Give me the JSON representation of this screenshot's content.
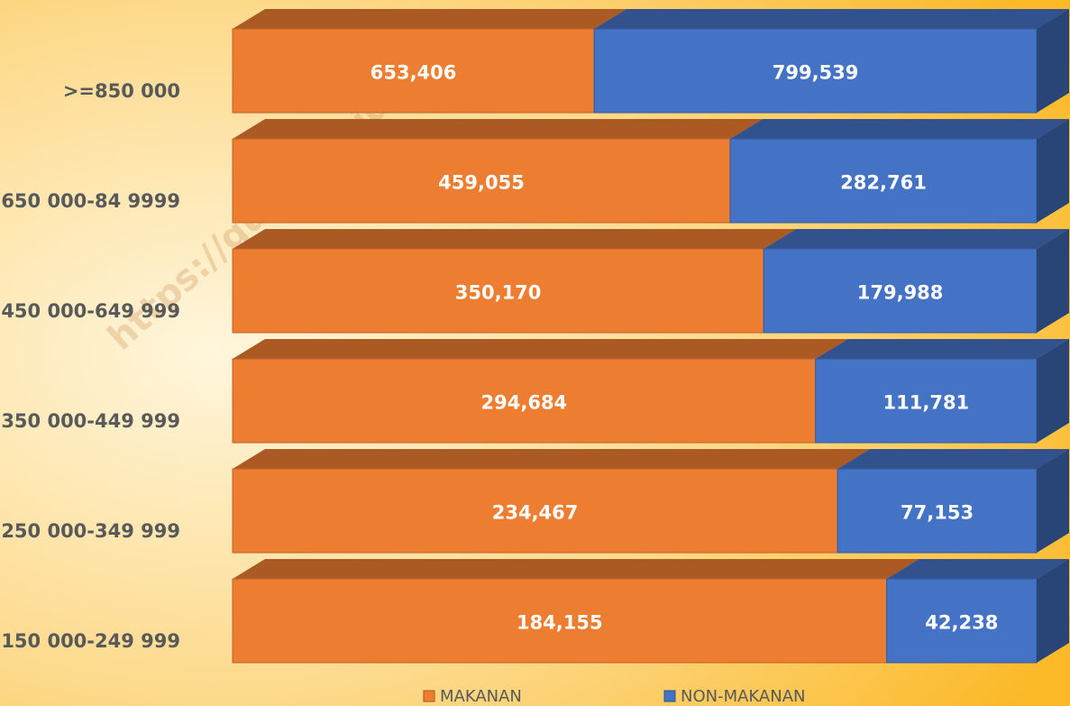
{
  "chart_data": {
    "type": "bar",
    "orientation": "horizontal",
    "stacked": "percent",
    "annotation": "https://gunungkidulkab.",
    "categories": [
      ">=850 000",
      "650 000-84 9999",
      "450 000-649 999",
      "350 000-449 999",
      "250 000-349 999",
      "150 000-249 999"
    ],
    "series": [
      {
        "name": "MAKANAN",
        "color": "#ed7d31",
        "values": [
          653406,
          459055,
          350170,
          294684,
          234467,
          184155
        ],
        "value_labels": [
          "653,406",
          "459,055",
          "350,170",
          "294,684",
          "234,467",
          "184,155"
        ]
      },
      {
        "name": "NON-MAKANAN",
        "color": "#4472c4",
        "values": [
          799539,
          282761,
          179988,
          111781,
          77153,
          42238
        ],
        "value_labels": [
          "799,539",
          "282,761",
          "179,988",
          "111,781",
          "77,153",
          "42,238"
        ]
      }
    ],
    "legend": "bottom"
  }
}
